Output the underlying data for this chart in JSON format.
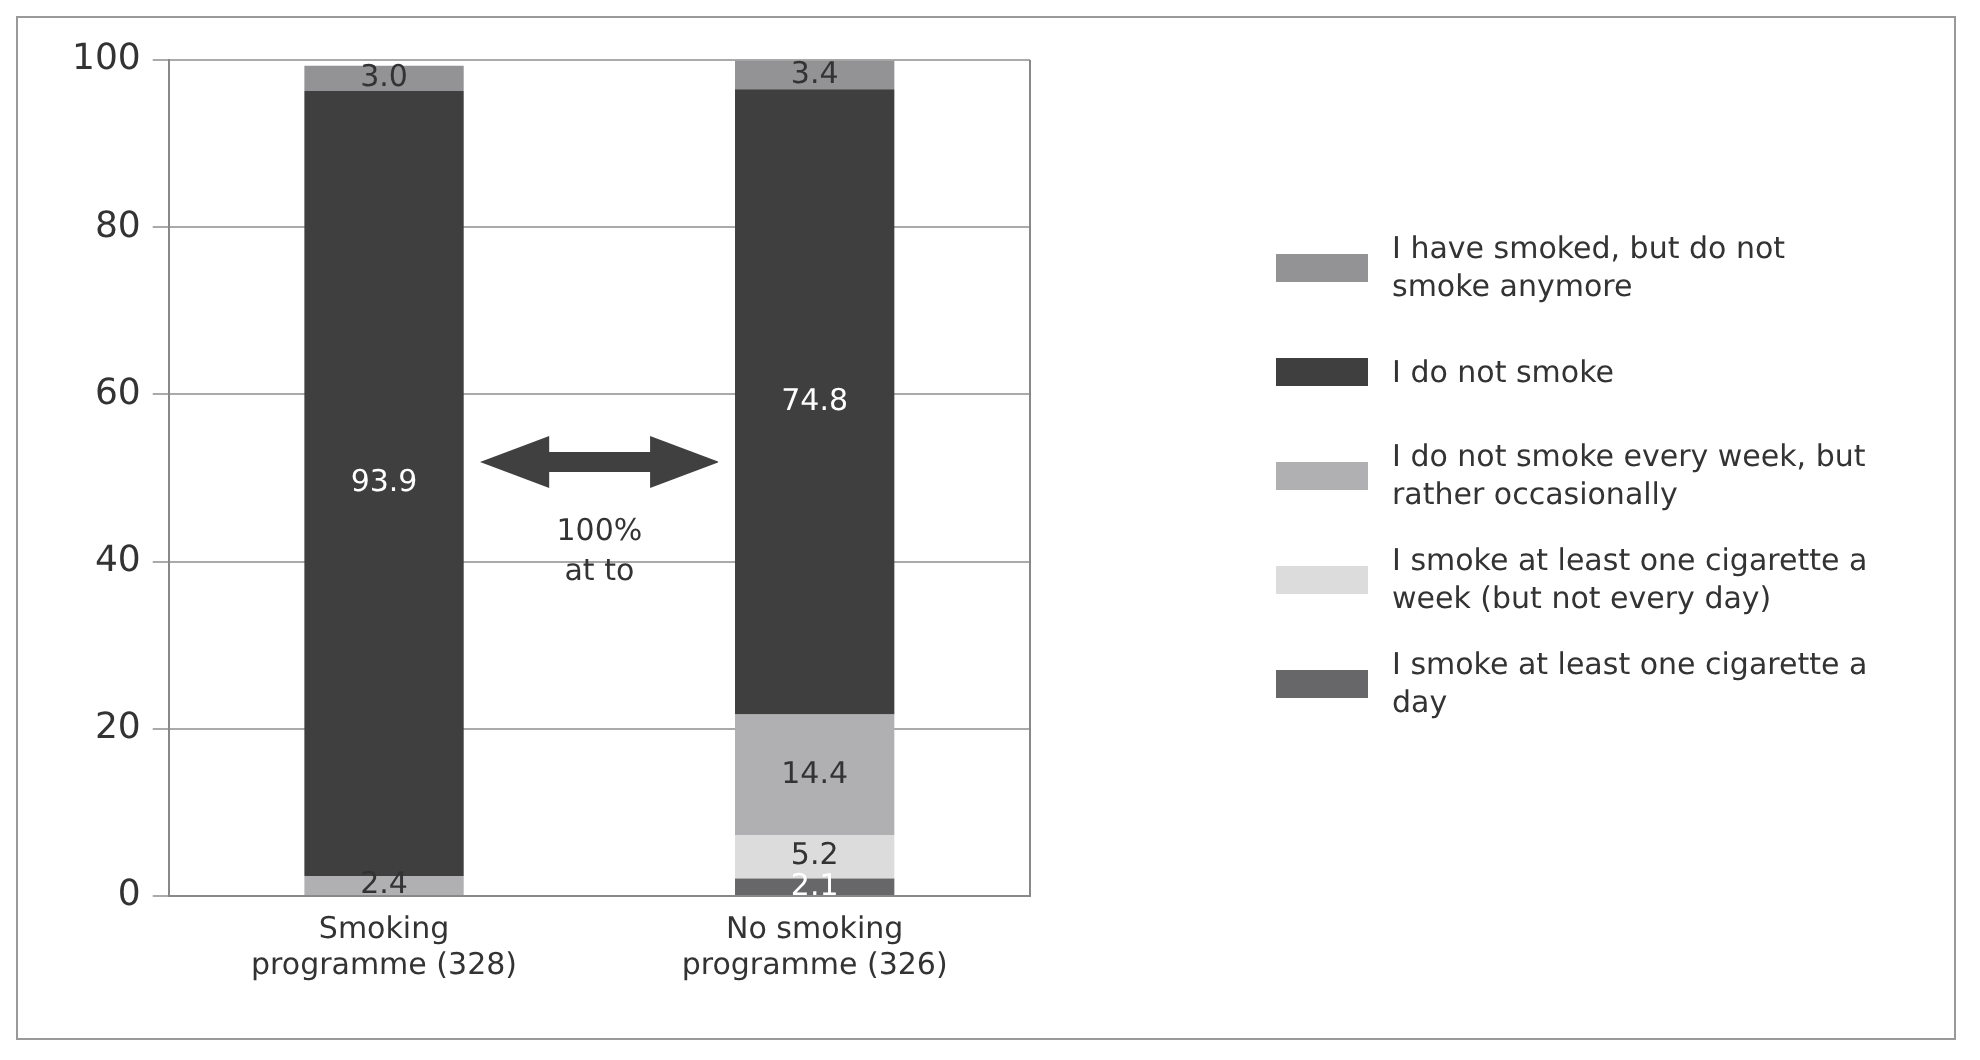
{
  "chart_data": {
    "type": "bar",
    "stacked": true,
    "categories": [
      "Smoking programme (328)",
      "No smoking programme (326)"
    ],
    "series": [
      {
        "name": "I smoke at least one cigarette a day",
        "color": "#67676a",
        "values": [
          null,
          2.1
        ],
        "value_labels": [
          null,
          "2.1"
        ]
      },
      {
        "name": "I smoke at least one cigarette a week (but not every day)",
        "color": "#dcdcdd",
        "values": [
          null,
          5.2
        ],
        "value_labels": [
          null,
          "5.2"
        ]
      },
      {
        "name": "I do not smoke every week, but rather occasionally",
        "color": "#b0b0b2",
        "values": [
          2.4,
          14.4
        ],
        "value_labels": [
          "2.4",
          "14.4"
        ]
      },
      {
        "name": "I do not smoke",
        "color": "#3f3f3f",
        "values": [
          93.9,
          74.8
        ],
        "value_labels": [
          "93.9",
          "74.8"
        ]
      },
      {
        "name": "I have smoked, but do not smoke anymore",
        "color": "#939396",
        "values": [
          3.0,
          3.4
        ],
        "value_labels": [
          "3.0",
          "3.4"
        ]
      }
    ],
    "ylim": [
      0,
      100
    ],
    "yticks": [
      0,
      20,
      40,
      60,
      80,
      100
    ],
    "grid": "y",
    "legend": "right",
    "annotations": [
      "100%\nat to"
    ]
  }
}
